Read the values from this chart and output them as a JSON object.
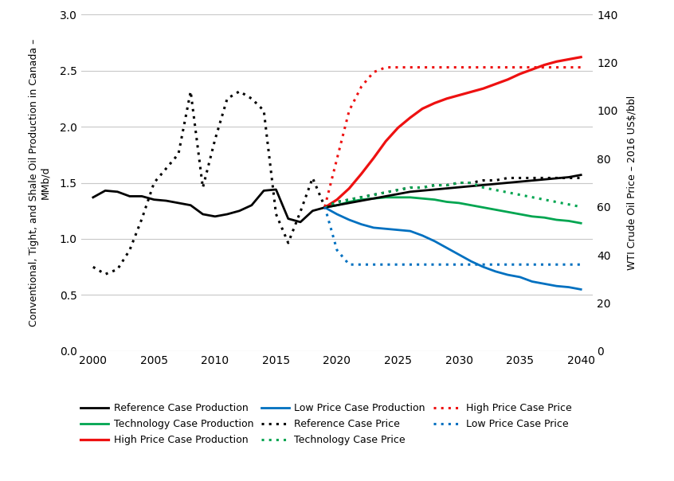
{
  "ylabel_left": "Conventional, Tight, and Shale Oil Production in Canada –\nMMb/d",
  "ylabel_right": "WTI Crude Oil Price – 2016 US$/bbl",
  "ylim_left": [
    0.0,
    3.0
  ],
  "ylim_right": [
    0,
    140
  ],
  "yticks_left": [
    0.0,
    0.5,
    1.0,
    1.5,
    2.0,
    2.5,
    3.0
  ],
  "yticks_right": [
    0,
    20,
    40,
    60,
    80,
    100,
    120,
    140
  ],
  "xlim": [
    1999,
    2041
  ],
  "xticks": [
    2000,
    2005,
    2010,
    2015,
    2020,
    2025,
    2030,
    2035,
    2040
  ],
  "ref_prod_hist_x": [
    2000,
    2001,
    2002,
    2003,
    2004,
    2005,
    2006,
    2007,
    2008,
    2009,
    2010,
    2011,
    2012,
    2013,
    2014,
    2015,
    2016,
    2017,
    2018,
    2019
  ],
  "ref_prod_hist_y": [
    1.37,
    1.43,
    1.42,
    1.38,
    1.38,
    1.35,
    1.34,
    1.32,
    1.3,
    1.22,
    1.2,
    1.22,
    1.25,
    1.3,
    1.43,
    1.44,
    1.18,
    1.15,
    1.25,
    1.28
  ],
  "ref_prod_proj_x": [
    2019,
    2020,
    2021,
    2022,
    2023,
    2024,
    2025,
    2026,
    2027,
    2028,
    2029,
    2030,
    2031,
    2032,
    2033,
    2034,
    2035,
    2036,
    2037,
    2038,
    2039,
    2040
  ],
  "ref_prod_proj_y": [
    1.28,
    1.3,
    1.32,
    1.34,
    1.36,
    1.38,
    1.4,
    1.42,
    1.43,
    1.44,
    1.45,
    1.46,
    1.47,
    1.48,
    1.49,
    1.5,
    1.51,
    1.52,
    1.53,
    1.54,
    1.55,
    1.57
  ],
  "tech_prod_x": [
    2019,
    2020,
    2021,
    2022,
    2023,
    2024,
    2025,
    2026,
    2027,
    2028,
    2029,
    2030,
    2031,
    2032,
    2033,
    2034,
    2035,
    2036,
    2037,
    2038,
    2039,
    2040
  ],
  "tech_prod_y": [
    1.28,
    1.3,
    1.33,
    1.35,
    1.36,
    1.37,
    1.37,
    1.37,
    1.36,
    1.35,
    1.33,
    1.32,
    1.3,
    1.28,
    1.26,
    1.24,
    1.22,
    1.2,
    1.19,
    1.17,
    1.16,
    1.14
  ],
  "high_prod_x": [
    2019,
    2020,
    2021,
    2022,
    2023,
    2024,
    2025,
    2026,
    2027,
    2028,
    2029,
    2030,
    2031,
    2032,
    2033,
    2034,
    2035,
    2036,
    2037,
    2038,
    2039,
    2040
  ],
  "high_prod_y": [
    1.28,
    1.35,
    1.45,
    1.58,
    1.72,
    1.87,
    1.99,
    2.08,
    2.16,
    2.21,
    2.25,
    2.28,
    2.31,
    2.34,
    2.38,
    2.42,
    2.47,
    2.51,
    2.55,
    2.58,
    2.6,
    2.62
  ],
  "low_prod_x": [
    2019,
    2020,
    2021,
    2022,
    2023,
    2024,
    2025,
    2026,
    2027,
    2028,
    2029,
    2030,
    2031,
    2032,
    2033,
    2034,
    2035,
    2036,
    2037,
    2038,
    2039,
    2040
  ],
  "low_prod_y": [
    1.28,
    1.22,
    1.17,
    1.13,
    1.1,
    1.09,
    1.08,
    1.07,
    1.03,
    0.98,
    0.92,
    0.86,
    0.8,
    0.75,
    0.71,
    0.68,
    0.66,
    0.62,
    0.6,
    0.58,
    0.57,
    0.55
  ],
  "ref_price_hist_x": [
    2000,
    2001,
    2002,
    2003,
    2004,
    2005,
    2006,
    2007,
    2008,
    2009,
    2010,
    2011,
    2012,
    2013,
    2014,
    2015,
    2016,
    2017,
    2018,
    2019
  ],
  "ref_price_hist_y": [
    35,
    32,
    34,
    42,
    55,
    70,
    76,
    82,
    108,
    68,
    88,
    105,
    108,
    105,
    100,
    57,
    45,
    58,
    72,
    60
  ],
  "ref_price_proj_x": [
    2019,
    2020,
    2021,
    2022,
    2023,
    2024,
    2025,
    2026,
    2027,
    2028,
    2029,
    2030,
    2031,
    2032,
    2033,
    2034,
    2035,
    2036,
    2037,
    2038,
    2039,
    2040
  ],
  "ref_price_proj_y": [
    60,
    62,
    63,
    64,
    65,
    66,
    67,
    68,
    68,
    69,
    69,
    70,
    70,
    71,
    71,
    72,
    72,
    72,
    72,
    72,
    72,
    72
  ],
  "tech_price_x": [
    2019,
    2020,
    2021,
    2022,
    2023,
    2024,
    2025,
    2026,
    2027,
    2028,
    2029,
    2030,
    2031,
    2032,
    2033,
    2034,
    2035,
    2036,
    2037,
    2038,
    2039,
    2040
  ],
  "tech_price_y": [
    60,
    62,
    63,
    64,
    65,
    66,
    67,
    68,
    68,
    69,
    69,
    70,
    70,
    68,
    67,
    66,
    65,
    64,
    63,
    62,
    61,
    60
  ],
  "high_price_x": [
    2019,
    2020,
    2021,
    2022,
    2023,
    2024,
    2025,
    2026,
    2027,
    2028,
    2029,
    2030,
    2031,
    2032,
    2033,
    2034,
    2035,
    2036,
    2037,
    2038,
    2039,
    2040
  ],
  "high_price_y": [
    60,
    80,
    100,
    110,
    116,
    118,
    118,
    118,
    118,
    118,
    118,
    118,
    118,
    118,
    118,
    118,
    118,
    118,
    118,
    118,
    118,
    118
  ],
  "low_price_x": [
    2019,
    2020,
    2021,
    2022,
    2023,
    2024,
    2025,
    2026,
    2027,
    2028,
    2029,
    2030,
    2031,
    2032,
    2033,
    2034,
    2035,
    2036,
    2037,
    2038,
    2039,
    2040
  ],
  "low_price_y": [
    60,
    42,
    36,
    36,
    36,
    36,
    36,
    36,
    36,
    36,
    36,
    36,
    36,
    36,
    36,
    36,
    36,
    36,
    36,
    36,
    36,
    36
  ],
  "color_black": "#000000",
  "color_green": "#00A550",
  "color_red": "#EE1111",
  "color_blue": "#0070C0",
  "lw_solid": 2.0,
  "lw_dotted": 2.2,
  "legend_row1": [
    "Reference Case Production",
    "Technology Case Production",
    "High Price Case Production"
  ],
  "legend_row2": [
    "Low Price Case Production",
    "Reference Case Price",
    "Technology Case Price"
  ],
  "legend_row3": [
    "High Price Case Price",
    "Low Price Case Price"
  ]
}
